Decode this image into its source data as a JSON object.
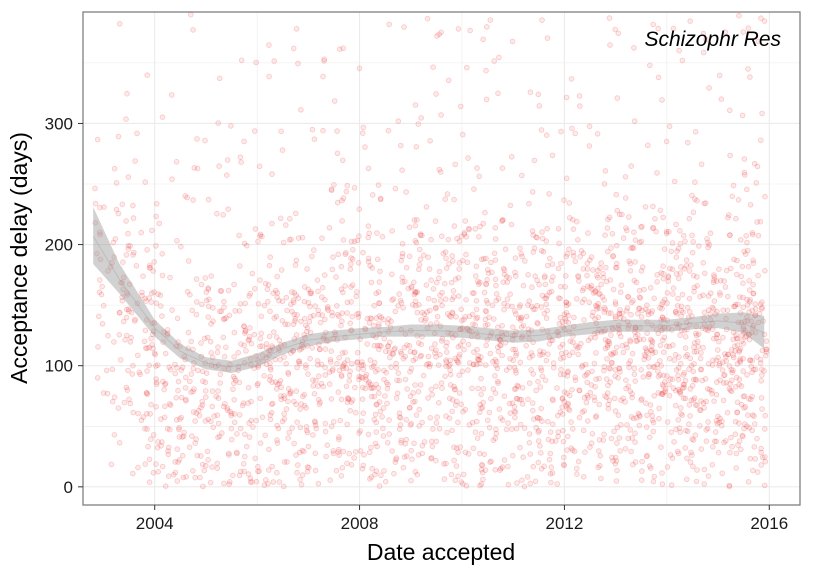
{
  "chart_data": {
    "type": "scatter",
    "title": "",
    "panel_label": "Schizophr Res",
    "xlabel": "Date accepted",
    "ylabel": "Acceptance delay (days)",
    "xlim": [
      2002.6,
      2016.6
    ],
    "ylim": [
      -15,
      392
    ],
    "x_ticks": [
      2004,
      2008,
      2012,
      2016
    ],
    "y_ticks": [
      0,
      100,
      200,
      300
    ],
    "x_tick_labels": [
      "2004",
      "2008",
      "2012",
      "2016"
    ],
    "y_tick_labels": [
      "0",
      "100",
      "200",
      "300"
    ],
    "grid": true,
    "legend": "none",
    "colors": {
      "points": "#e8272a",
      "smooth_band": "#999999",
      "panel_border": "#7f7f7f",
      "grid": "#ebebeb"
    },
    "points_description": "approx 3000 accepted papers, 2003-2016, delays mostly 0-390 days, densest 40-160",
    "smooth": {
      "x": [
        2002.8,
        2003.3,
        2004.0,
        2004.5,
        2005.0,
        2005.5,
        2006.0,
        2006.5,
        2007.0,
        2007.5,
        2008.0,
        2008.5,
        2009.0,
        2009.5,
        2010.0,
        2010.5,
        2011.0,
        2011.5,
        2012.0,
        2012.5,
        2013.0,
        2013.5,
        2014.0,
        2014.5,
        2015.0,
        2015.5,
        2015.9
      ],
      "fit": [
        207,
        172,
        131,
        112,
        102,
        99,
        104,
        114,
        121,
        124,
        126,
        128,
        129,
        129,
        128,
        126,
        124,
        125,
        128,
        131,
        133,
        133,
        133,
        135,
        137,
        135,
        127
      ],
      "lower": [
        184,
        160,
        124,
        106,
        97,
        94,
        99,
        109,
        116,
        120,
        122,
        124,
        124,
        124,
        123,
        121,
        119,
        120,
        124,
        126,
        128,
        128,
        128,
        130,
        131,
        127,
        114
      ],
      "upper": [
        231,
        185,
        138,
        118,
        107,
        104,
        110,
        119,
        126,
        129,
        131,
        132,
        134,
        134,
        133,
        131,
        129,
        130,
        133,
        136,
        138,
        138,
        138,
        140,
        143,
        144,
        141
      ]
    }
  }
}
